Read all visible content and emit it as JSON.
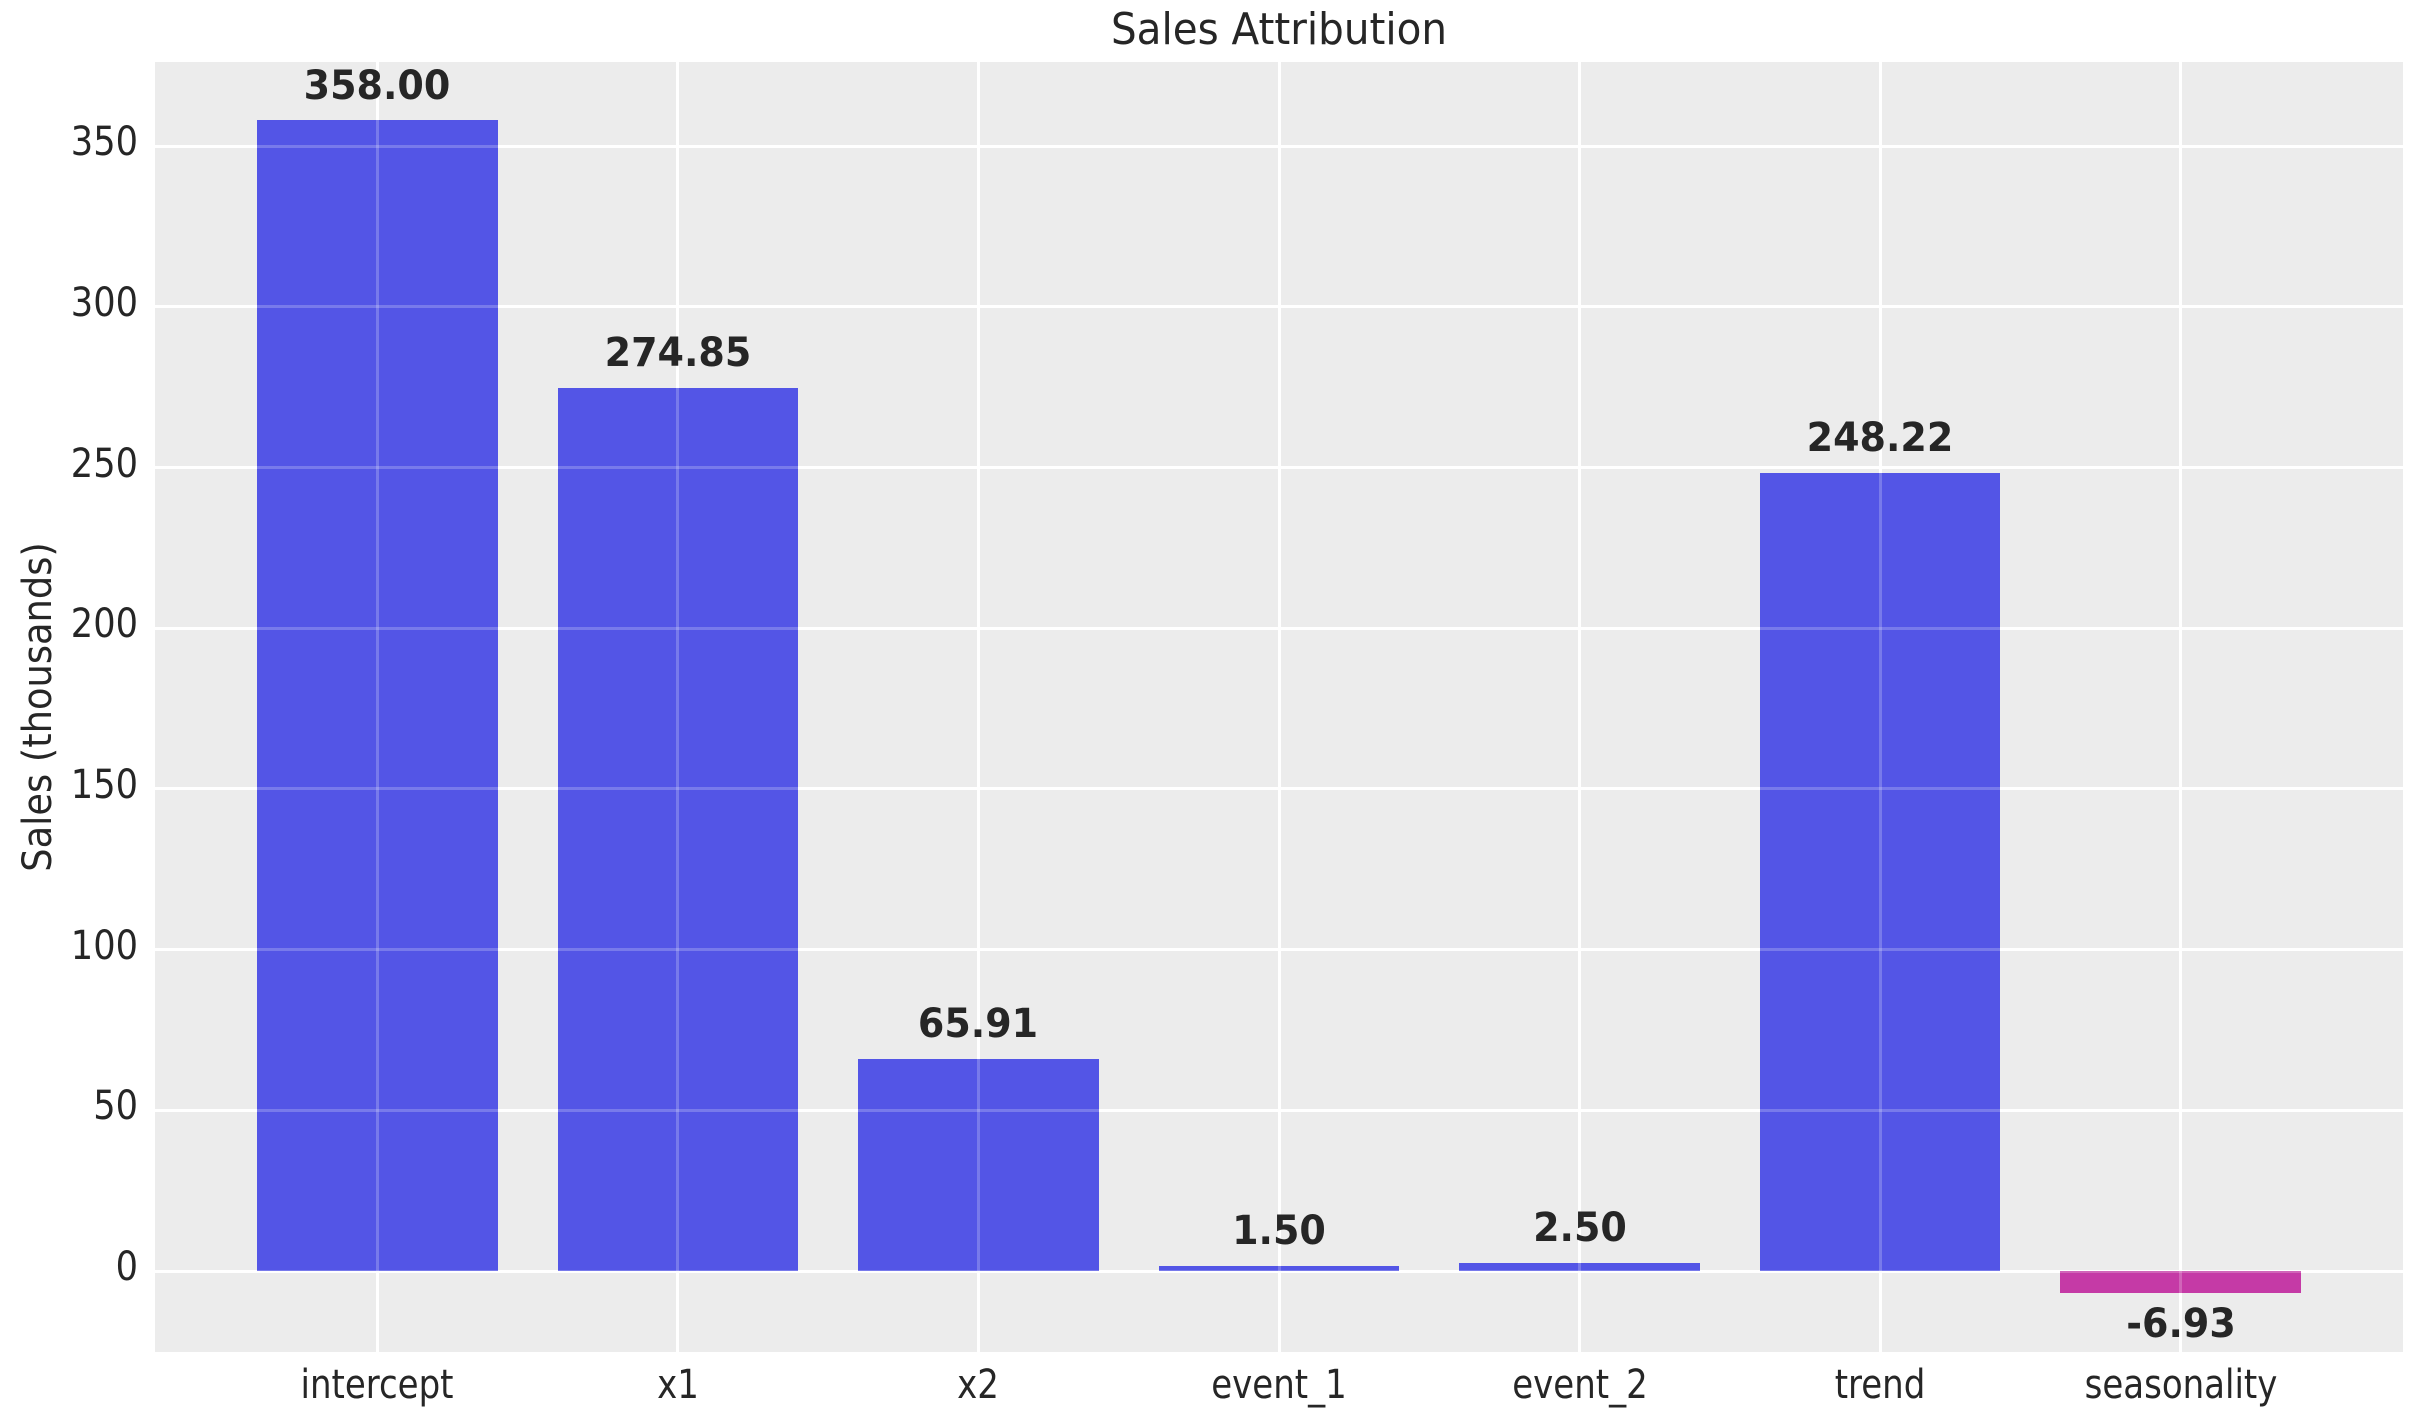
{
  "chart_data": {
    "type": "bar",
    "title": "Sales Attribution",
    "xlabel": "",
    "ylabel": "Sales (thousands)",
    "categories": [
      "intercept",
      "x1",
      "x2",
      "event_1",
      "event_2",
      "trend",
      "seasonality"
    ],
    "values": [
      358.0,
      274.85,
      65.91,
      1.5,
      2.5,
      248.22,
      -6.93
    ],
    "value_labels": [
      "358.00",
      "274.85",
      "65.91",
      "1.50",
      "2.50",
      "248.22",
      "-6.93"
    ],
    "y_ticks": [
      0,
      50,
      100,
      150,
      200,
      250,
      300,
      350
    ],
    "ylim": [
      -25.2,
      376.2
    ],
    "bar_width_fraction": 0.8,
    "x_outer_margin": 0.74,
    "grid": true,
    "legend": false,
    "colors": {
      "positive_bar": "#5355E6",
      "negative_bar": "#C53AA6",
      "plot_background": "#ECECEC",
      "gridline": "#FFFFFF",
      "gridline_overlay": "rgba(255,255,255,0.22)",
      "text": "#262626",
      "figure_background": "#FFFFFF"
    }
  }
}
